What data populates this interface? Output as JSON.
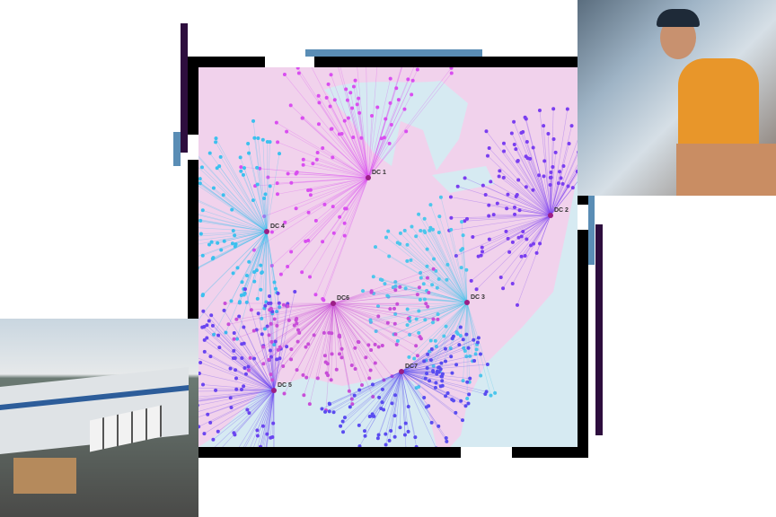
{
  "map": {
    "distribution_centers": [
      {
        "label": "DC 1",
        "color": "#d94ef0"
      },
      {
        "label": "DC 2",
        "color": "#7a3ef0"
      },
      {
        "label": "DC 3",
        "color": "#4cc6ec"
      },
      {
        "label": "DC 4",
        "color": "#3cc0ee"
      },
      {
        "label": "DC 5",
        "color": "#6a45f0"
      },
      {
        "label": "DC6",
        "color": "#c84ed8"
      },
      {
        "label": "DC7",
        "color": "#5a4cf0"
      }
    ],
    "colors": {
      "land": "#f1d2ec",
      "water": "#cfe6ef",
      "hub": "#9b1f86",
      "frame": "#000000",
      "accent_blue": "#5a8db5",
      "accent_purple": "#2e0e3e"
    }
  },
  "photos": [
    {
      "subject": "delivery-driver-with-tablet"
    },
    {
      "subject": "warehouse-with-trucks"
    }
  ]
}
